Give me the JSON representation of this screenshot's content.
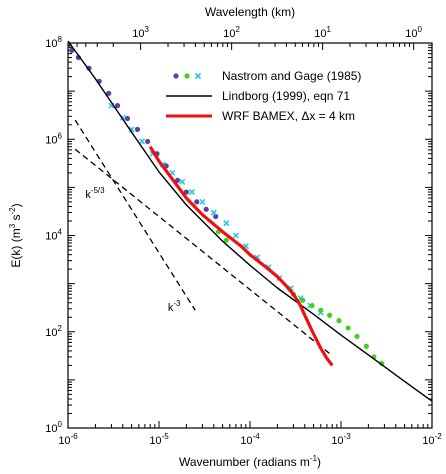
{
  "chart_data": {
    "type": "line",
    "x_scale": "log",
    "y_scale": "log",
    "xlim": [
      1e-06,
      0.01
    ],
    "ylim": [
      1,
      100000000.0
    ],
    "grid": false,
    "legend_position": "top-right",
    "xlabel_prefix": "Wavenumber  (radians m",
    "xlabel_exp": "-1",
    "xlabel_suffix": ")",
    "ylabel_prefix": "E(k)  (m",
    "ylabel_exp": "3",
    "ylabel_mid": " s",
    "ylabel_exp2": "-2",
    "ylabel_suffix": ")",
    "x2label": "Wavelength  (km)",
    "bottom_ticks": [
      {
        "value": 1e-06,
        "mant": "10",
        "exp": "-6"
      },
      {
        "value": 1e-05,
        "mant": "10",
        "exp": "-5"
      },
      {
        "value": 0.0001,
        "mant": "10",
        "exp": "-4"
      },
      {
        "value": 0.001,
        "mant": "10",
        "exp": "-3"
      },
      {
        "value": 0.01,
        "mant": "10",
        "exp": "-2"
      }
    ],
    "left_ticks": [
      {
        "value": 1,
        "mant": "10",
        "exp": "0"
      },
      {
        "value": 100,
        "mant": "10",
        "exp": "2"
      },
      {
        "value": 10000,
        "mant": "10",
        "exp": "4"
      },
      {
        "value": 1000000,
        "mant": "10",
        "exp": "6"
      },
      {
        "value": 100000000,
        "mant": "10",
        "exp": "8"
      }
    ],
    "top_ticks": [
      {
        "wavenumber": 6.283e-06,
        "mant": "10",
        "exp": "3"
      },
      {
        "wavenumber": 6.283e-05,
        "mant": "10",
        "exp": "2"
      },
      {
        "wavenumber": 0.0006283,
        "mant": "10",
        "exp": "1"
      },
      {
        "wavenumber": 0.006283,
        "mant": "10",
        "exp": "0"
      }
    ],
    "series": [
      {
        "name": "Nastrom and Gage (1985)",
        "kind": "scatter",
        "color": "#5a3fa8",
        "marker": "circle",
        "x": [
          1.1e-06,
          1.3e-06,
          1.7e-06,
          2.2e-06,
          2.8e-06,
          3.5e-06,
          4.5e-06,
          5.8e-06,
          7.5e-06,
          9.5e-06,
          1.2e-05,
          1.6e-05,
          2e-05,
          2.6e-05,
          3.3e-05,
          4.2e-05
        ],
        "y": [
          70000000.0,
          50000000.0,
          30000000.0,
          16000000.0,
          9000000.0,
          5000000.0,
          2700000.0,
          1600000.0,
          900000.0,
          500000.0,
          280000.0,
          140000.0,
          80000.0,
          50000.0,
          35000.0,
          25000.0
        ]
      },
      {
        "name": "Nastrom and Gage (1985)",
        "kind": "scatter",
        "color": "#22c4e8",
        "marker": "x",
        "x": [
          3e-06,
          4e-06,
          5e-06,
          6.5e-06,
          8.5e-06,
          1.1e-05,
          1.4e-05,
          1.8e-05,
          2.3e-05,
          3e-05,
          4e-05,
          5.5e-05,
          7e-05,
          9e-05,
          0.00012,
          0.00016,
          0.00021,
          0.00028,
          0.00036,
          0.00046,
          0.0006
        ],
        "y": [
          5000000.0,
          2800000.0,
          1600000.0,
          900000.0,
          500000.0,
          300000.0,
          200000.0,
          130000.0,
          80000.0,
          50000.0,
          30000.0,
          18000.0,
          10000.0,
          6000.0,
          3500.0,
          2200.0,
          1300.0,
          800.0,
          500.0,
          350.0,
          250.0
        ]
      },
      {
        "name": "Nastrom and Gage (1985)",
        "kind": "scatter",
        "color": "#44d11b",
        "marker": "circle",
        "x": [
          4.5e-05,
          5.5e-05,
          0.0003,
          0.00038,
          0.00048,
          0.0006,
          0.00075,
          0.00095,
          0.0012,
          0.0015,
          0.0019,
          0.0023,
          0.0028
        ],
        "y": [
          12000.0,
          8000.0,
          600.0,
          450.0,
          350.0,
          280.0,
          220.0,
          170.0,
          120.0,
          80.0,
          50.0,
          30.0,
          22.0
        ]
      },
      {
        "name": "Lindborg (1999),  eqn 71",
        "kind": "line",
        "color": "#000000",
        "x": [
          1e-06,
          2e-06,
          5e-06,
          1e-05,
          2e-05,
          5e-05,
          0.0001,
          0.0002,
          0.0005,
          0.001,
          0.002,
          0.005,
          0.01
        ],
        "y": [
          110000000.0,
          18000000.0,
          1400000.0,
          210000.0,
          43000.0,
          7600.0,
          2400.0,
          810.0,
          230.0,
          85.0,
          33.0,
          9.3,
          3.6
        ]
      },
      {
        "name": "WRF BAMEX, Δx = 4 km",
        "kind": "line",
        "color": "#ee1111",
        "x": [
          8e-06,
          1e-05,
          2e-05,
          3e-05,
          5e-05,
          8e-05,
          0.0001,
          0.00015,
          0.0002,
          0.00025,
          0.0003,
          0.00035,
          0.0004,
          0.0005,
          0.0006,
          0.0007,
          0.0008
        ],
        "y": [
          700000.0,
          350000.0,
          60000.0,
          27000.0,
          12000.0,
          6000.0,
          4000.0,
          2200.0,
          1400.0,
          900.0,
          600.0,
          380.0,
          220.0,
          90.0,
          45.0,
          28.0,
          20.0
        ]
      }
    ],
    "reference_lines": [
      {
        "label_base": "k",
        "label_exp": "-5/3",
        "x": [
          1.2e-06,
          0.0008
        ],
        "y": [
          620000.0,
          32
        ],
        "color": "#000000"
      },
      {
        "label_base": "k",
        "label_exp": "-3",
        "x": [
          1.2e-06,
          2.5e-05
        ],
        "y": [
          2500000.0,
          280.0
        ],
        "color": "#000000"
      }
    ],
    "annotations": [
      {
        "base": "k",
        "exp": "-5/3",
        "x": 1.55e-06,
        "y": 60000.0
      },
      {
        "base": "k",
        "exp": "-3",
        "x": 1.25e-05,
        "y": 270.0
      }
    ],
    "legend": [
      {
        "label": "Nastrom and Gage (1985)",
        "kind": "markers",
        "colors": [
          "#5a3fa8",
          "#44d11b",
          "#22c4e8"
        ],
        "shapes": [
          "circle",
          "circle",
          "x"
        ]
      },
      {
        "label": "Lindborg (1999),  eqn 71",
        "kind": "line",
        "color": "#000000"
      },
      {
        "label": "WRF BAMEX, Δx = 4 km",
        "kind": "line",
        "color": "#ee1111"
      }
    ]
  }
}
